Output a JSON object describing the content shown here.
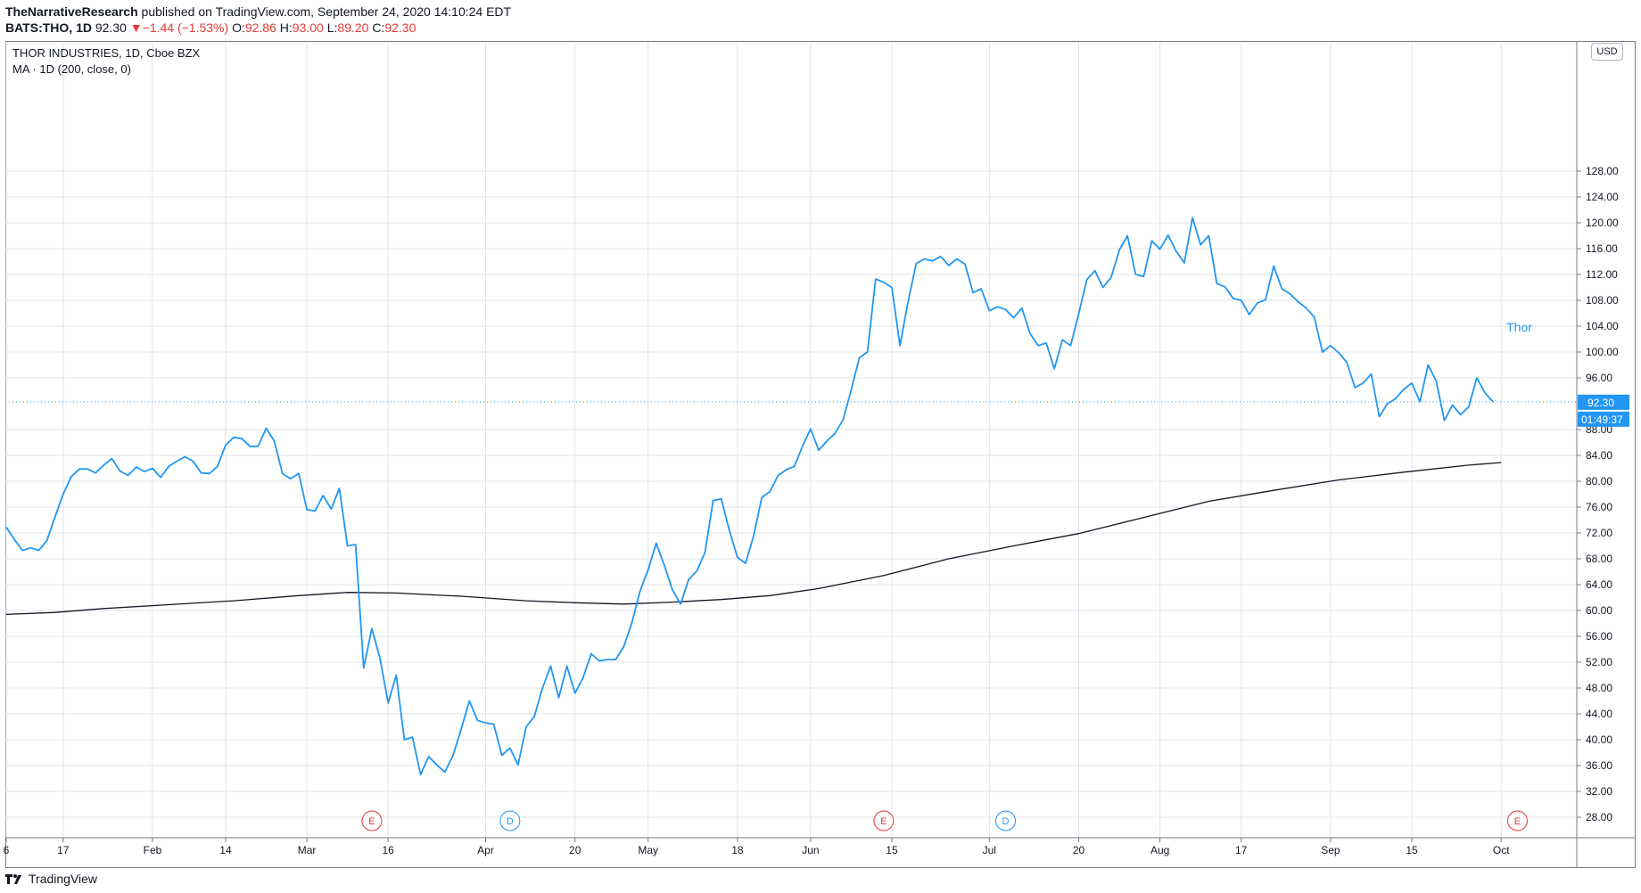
{
  "header": {
    "line1_author": "TheNarrativeResearch",
    "line1_rest": " published on TradingView.com, September 24, 2020 14:10:24 EDT",
    "symbol": "BATS:THO, 1D",
    "last": "92.30",
    "arrow": "▼",
    "change": "−1.44 (−1.53%)",
    "o_label": "O:",
    "o_val": "92.86",
    "h_label": "H:",
    "h_val": "93.00",
    "l_label": "L:",
    "l_val": "89.20",
    "c_label": "C:",
    "c_val": "92.30"
  },
  "legend": {
    "title": "THOR INDUSTRIES, 1D, Cboe BZX",
    "ma": "MA · 1D (200, close, 0)"
  },
  "currency": "USD",
  "price_tag": "92.30",
  "countdown": "01:49:37",
  "series_label": "Thor",
  "footer": {
    "brand": "TradingView"
  },
  "colors": {
    "price": "#2196f3",
    "ma": "#131722",
    "grid": "#e0e3eb",
    "earnings": "#e53935",
    "dividend": "#2196f3"
  },
  "chart_data": {
    "type": "line",
    "y_ticks": [
      28,
      32,
      36,
      40,
      44,
      48,
      52,
      56,
      60,
      64,
      68,
      72,
      76,
      80,
      84,
      88,
      96,
      100,
      104,
      108,
      112,
      116,
      120,
      124,
      128
    ],
    "x_tick_labels": [
      {
        "label": "6",
        "i": 0
      },
      {
        "label": "17",
        "i": 7
      },
      {
        "label": "Feb",
        "i": 18
      },
      {
        "label": "14",
        "i": 27
      },
      {
        "label": "Mar",
        "i": 37
      },
      {
        "label": "16",
        "i": 47
      },
      {
        "label": "Apr",
        "i": 59
      },
      {
        "label": "20",
        "i": 70
      },
      {
        "label": "May",
        "i": 79
      },
      {
        "label": "18",
        "i": 90
      },
      {
        "label": "Jun",
        "i": 99
      },
      {
        "label": "15",
        "i": 109
      },
      {
        "label": "Jul",
        "i": 121
      },
      {
        "label": "20",
        "i": 132
      },
      {
        "label": "Aug",
        "i": 142
      },
      {
        "label": "17",
        "i": 152
      },
      {
        "label": "Sep",
        "i": 163
      },
      {
        "label": "15",
        "i": 173
      },
      {
        "label": "Oct",
        "i": 184
      }
    ],
    "series": [
      {
        "name": "Thor",
        "values": [
          72.9,
          71.0,
          69.3,
          69.7,
          69.3,
          70.8,
          74.5,
          78.0,
          80.7,
          81.9,
          81.9,
          81.3,
          82.5,
          83.5,
          81.6,
          80.9,
          82.2,
          81.5,
          82.0,
          80.6,
          82.3,
          83.1,
          83.8,
          83.1,
          81.3,
          81.2,
          82.3,
          85.6,
          86.8,
          86.6,
          85.4,
          85.4,
          88.2,
          86.2,
          81.2,
          80.4,
          81.2,
          75.6,
          75.4,
          77.8,
          75.7,
          78.9,
          70.0,
          70.2,
          51.1,
          57.2,
          52.6,
          45.7,
          50.0,
          40.0,
          40.4,
          34.6,
          37.4,
          36.1,
          35.0,
          37.6,
          41.7,
          46.0,
          43.0,
          42.6,
          42.4,
          37.6,
          38.7,
          36.1,
          42.0,
          43.6,
          48.0,
          51.4,
          46.5,
          51.4,
          47.2,
          49.6,
          53.3,
          52.2,
          52.4,
          52.4,
          54.4,
          58.1,
          63.0,
          66.3,
          70.4,
          67.0,
          63.2,
          61.0,
          64.8,
          66.1,
          69.0,
          77.0,
          77.3,
          72.4,
          68.2,
          67.3,
          71.6,
          77.5,
          78.4,
          80.9,
          81.8,
          82.3,
          85.4,
          88.1,
          84.8,
          86.2,
          87.4,
          89.5,
          94.1,
          99.1,
          100.0,
          111.3,
          110.8,
          110.0,
          101.0,
          107.8,
          113.7,
          114.4,
          114.1,
          114.8,
          113.4,
          114.4,
          113.6,
          109.2,
          109.8,
          106.4,
          107.0,
          106.6,
          105.3,
          106.8,
          102.9,
          101.0,
          101.4,
          97.4,
          101.9,
          101.0,
          105.9,
          111.2,
          112.6,
          110.0,
          111.6,
          115.8,
          118.0,
          112.0,
          111.7,
          117.2,
          115.9,
          118.1,
          115.6,
          113.8,
          120.8,
          116.6,
          118.0,
          110.6,
          110.1,
          108.3,
          108.0,
          105.8,
          107.6,
          108.1,
          113.3,
          109.8,
          109.0,
          107.8,
          106.8,
          105.4,
          100.0,
          101.0,
          99.9,
          98.4,
          94.5,
          95.2,
          96.6,
          90.0,
          92.0,
          92.8,
          94.2,
          95.2,
          92.3,
          98.0,
          95.5,
          89.4,
          91.8,
          90.3,
          91.5,
          96.0,
          93.7,
          92.3
        ]
      },
      {
        "name": "MA · 1D (200, close, 0)",
        "points": [
          [
            0,
            59.4
          ],
          [
            6,
            59.7
          ],
          [
            12,
            60.3
          ],
          [
            20,
            60.9
          ],
          [
            28,
            61.5
          ],
          [
            36,
            62.3
          ],
          [
            42,
            62.8
          ],
          [
            48,
            62.7
          ],
          [
            56,
            62.2
          ],
          [
            64,
            61.5
          ],
          [
            70,
            61.2
          ],
          [
            76,
            61.0
          ],
          [
            82,
            61.3
          ],
          [
            88,
            61.7
          ],
          [
            94,
            62.3
          ],
          [
            100,
            63.4
          ],
          [
            108,
            65.4
          ],
          [
            116,
            68.0
          ],
          [
            124,
            70.0
          ],
          [
            132,
            71.9
          ],
          [
            140,
            74.4
          ],
          [
            148,
            76.9
          ],
          [
            156,
            78.6
          ],
          [
            164,
            80.2
          ],
          [
            172,
            81.4
          ],
          [
            180,
            82.5
          ],
          [
            184,
            82.9
          ]
        ]
      }
    ],
    "event_markers": [
      {
        "type": "E",
        "i": 45
      },
      {
        "type": "D",
        "i": 62
      },
      {
        "type": "E",
        "i": 108
      },
      {
        "type": "D",
        "i": 123
      },
      {
        "type": "E",
        "i": 186
      }
    ]
  }
}
